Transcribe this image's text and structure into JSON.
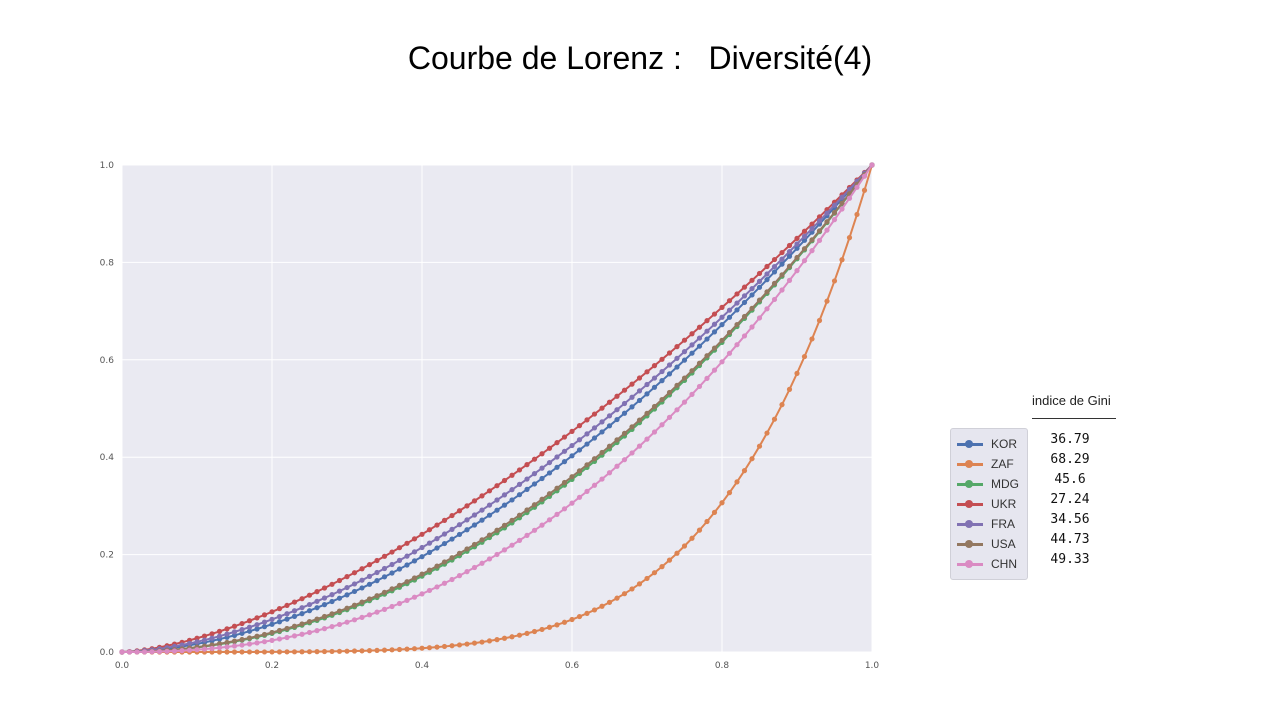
{
  "slide": {
    "title": "Courbe de Lorenz :   Diversité(4)"
  },
  "gini_table": {
    "header": "indice de Gini",
    "values": [
      "36.79",
      "68.29",
      "45.6",
      "27.24",
      "34.56",
      "44.73",
      "49.33"
    ]
  },
  "chart_data": {
    "type": "line",
    "xlim": [
      0.0,
      1.0
    ],
    "ylim": [
      0.0,
      1.0
    ],
    "x_ticks": [
      "0.0",
      "0.2",
      "0.4",
      "0.6",
      "0.8",
      "1.0"
    ],
    "y_ticks": [
      "0.0",
      "0.2",
      "0.4",
      "0.6",
      "0.8",
      "1.0"
    ],
    "grid": true,
    "legend_position": "right",
    "background": "#eaeaf2",
    "points_per_series": 101,
    "series": [
      {
        "name": "KOR",
        "color": "#4c72b0",
        "shape_exponent": 1.78
      },
      {
        "name": "ZAF",
        "color": "#dd8452",
        "shape_exponent": 5.3
      },
      {
        "name": "MDG",
        "color": "#55a868",
        "shape_exponent": 2.03
      },
      {
        "name": "UKR",
        "color": "#c44e52",
        "shape_exponent": 1.55
      },
      {
        "name": "FRA",
        "color": "#8172b3",
        "shape_exponent": 1.68
      },
      {
        "name": "USA",
        "color": "#937860",
        "shape_exponent": 2.0
      },
      {
        "name": "CHN",
        "color": "#da8bc3",
        "shape_exponent": 2.32
      }
    ]
  }
}
